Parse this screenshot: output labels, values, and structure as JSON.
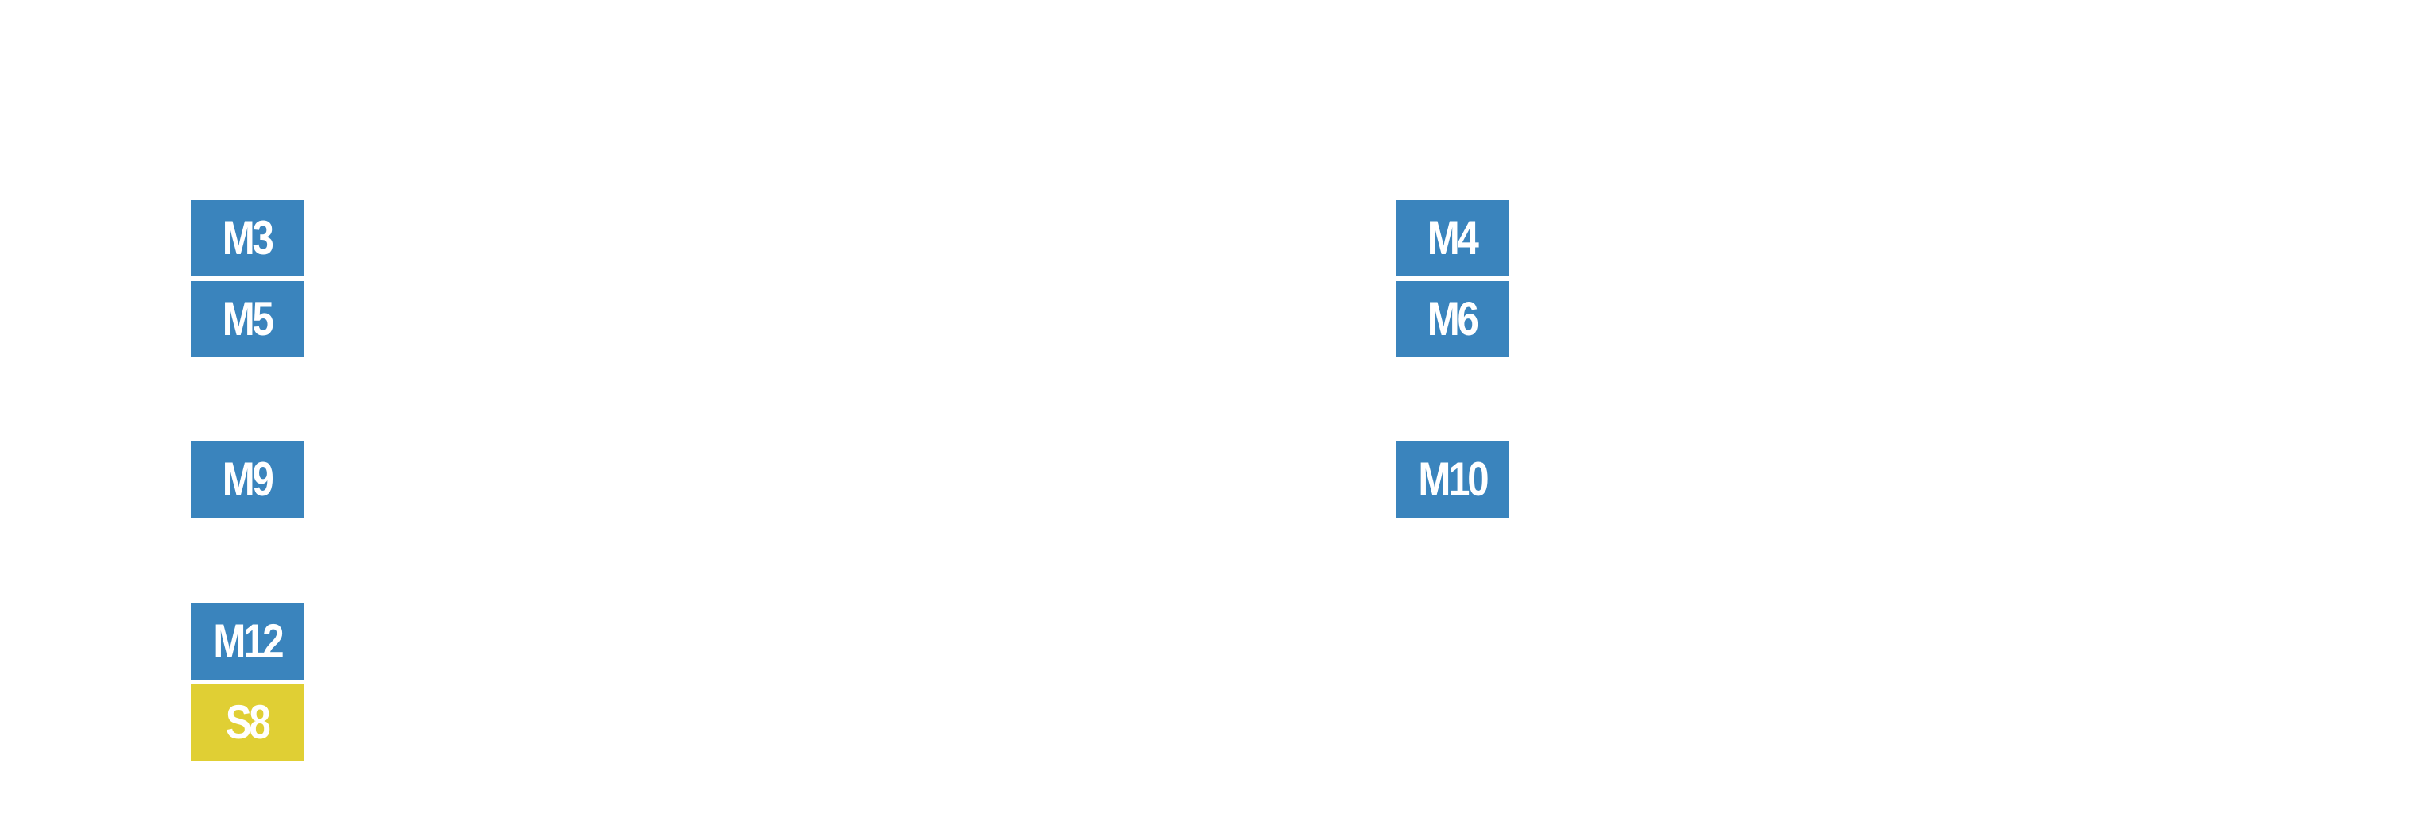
{
  "colors": {
    "blue": "#3a84bd",
    "yellow": "#e0cf34",
    "text": "#ffffff",
    "background": "#ffffff"
  },
  "left_column": {
    "tiles": [
      {
        "label": "M3",
        "color": "blue"
      },
      {
        "label": "M5",
        "color": "blue"
      },
      {
        "label": "M9",
        "color": "blue"
      },
      {
        "label": "M12",
        "color": "blue"
      },
      {
        "label": "S8",
        "color": "yellow"
      }
    ]
  },
  "right_column": {
    "tiles": [
      {
        "label": "M4",
        "color": "blue"
      },
      {
        "label": "M6",
        "color": "blue"
      },
      {
        "label": "M10",
        "color": "blue"
      }
    ]
  }
}
